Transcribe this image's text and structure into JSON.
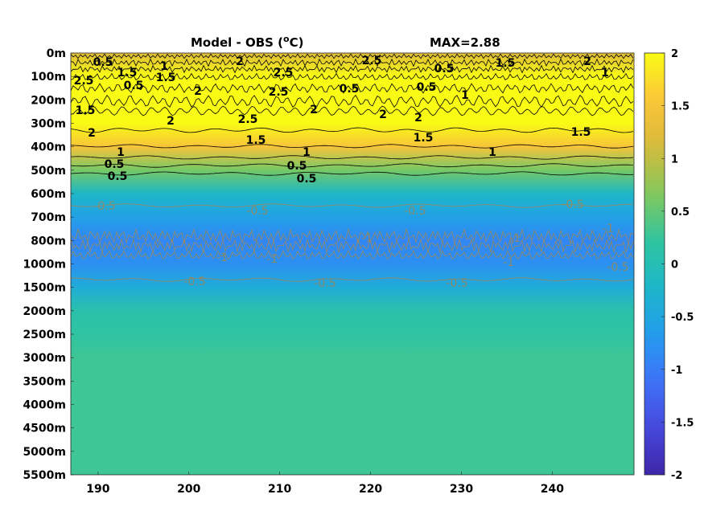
{
  "chart_data": {
    "type": "heatmap",
    "title_left": "Model - OBS (",
    "title_unit_sup": "o",
    "title_unit": "C)",
    "title_right": "MAX=2.88",
    "x_ticks": [
      "190",
      "200",
      "210",
      "220",
      "230",
      "240"
    ],
    "x_tick_values": [
      190,
      200,
      210,
      220,
      230,
      240
    ],
    "xlim": [
      187,
      249
    ],
    "y_ticks": [
      "0m",
      "100m",
      "200m",
      "300m",
      "400m",
      "500m",
      "600m",
      "700m",
      "800m",
      "1000m",
      "1500m",
      "2000m",
      "2500m",
      "3000m",
      "3500m",
      "4000m",
      "4500m",
      "5000m",
      "5500m"
    ],
    "colorbar_ticks": [
      "2",
      "1.5",
      "1",
      "0.5",
      "0",
      "-0.5",
      "-1",
      "-1.5",
      "-2"
    ],
    "colorbar_values": [
      2,
      1.5,
      1,
      0.5,
      0,
      -0.5,
      -1,
      -1.5,
      -2
    ],
    "clim": [
      -2,
      2
    ],
    "colormap": [
      "#3e26a8",
      "#4648db",
      "#3f72f9",
      "#239ded",
      "#1cb6c8",
      "#2fc5a0",
      "#83c85c",
      "#d6ba3a",
      "#fcc53a",
      "#f9fb15"
    ],
    "depth_profile": [
      {
        "depth": "0m",
        "value": 1.2
      },
      {
        "depth": "100m",
        "value": 2.5
      },
      {
        "depth": "200m",
        "value": 2.6
      },
      {
        "depth": "300m",
        "value": 2.2
      },
      {
        "depth": "400m",
        "value": 1.5
      },
      {
        "depth": "500m",
        "value": 0.6
      },
      {
        "depth": "600m",
        "value": -0.2
      },
      {
        "depth": "700m",
        "value": -0.6
      },
      {
        "depth": "800m",
        "value": -0.9
      },
      {
        "depth": "1000m",
        "value": -0.8
      },
      {
        "depth": "1500m",
        "value": -0.4
      },
      {
        "depth": "2000m",
        "value": 0.1
      },
      {
        "depth": "2500m",
        "value": 0.2
      },
      {
        "depth": "3000m",
        "value": 0.3
      },
      {
        "depth": "3500m",
        "value": 0.3
      },
      {
        "depth": "4000m",
        "value": 0.3
      },
      {
        "depth": "4500m",
        "value": 0.3
      },
      {
        "depth": "5000m",
        "value": 0.3
      },
      {
        "depth": "5500m",
        "value": 0.3
      }
    ],
    "contour_labels_dark": [
      "0.5",
      "1.5",
      "1",
      "2",
      "2.5",
      "2.5",
      "0.5",
      "1.5",
      "2",
      "1",
      "2.5",
      "0.5",
      "1.5",
      "2",
      "2.5",
      "0.5",
      "0.5",
      "1",
      "1.5",
      "2",
      "2.5",
      "2",
      "2",
      "2",
      "2",
      "1.5",
      "1.5",
      "1.5",
      "1",
      "1",
      "1",
      "0.5",
      "0.5",
      "0.5",
      "0.5"
    ],
    "contour_labels_grey": [
      "-0.5",
      "-0.5",
      "-0.5",
      "-0.5",
      "-1",
      "-1",
      "-1",
      "-1",
      "-1",
      "-1",
      "-0.5",
      "-0.5",
      "-0.5",
      "-0.5"
    ]
  }
}
